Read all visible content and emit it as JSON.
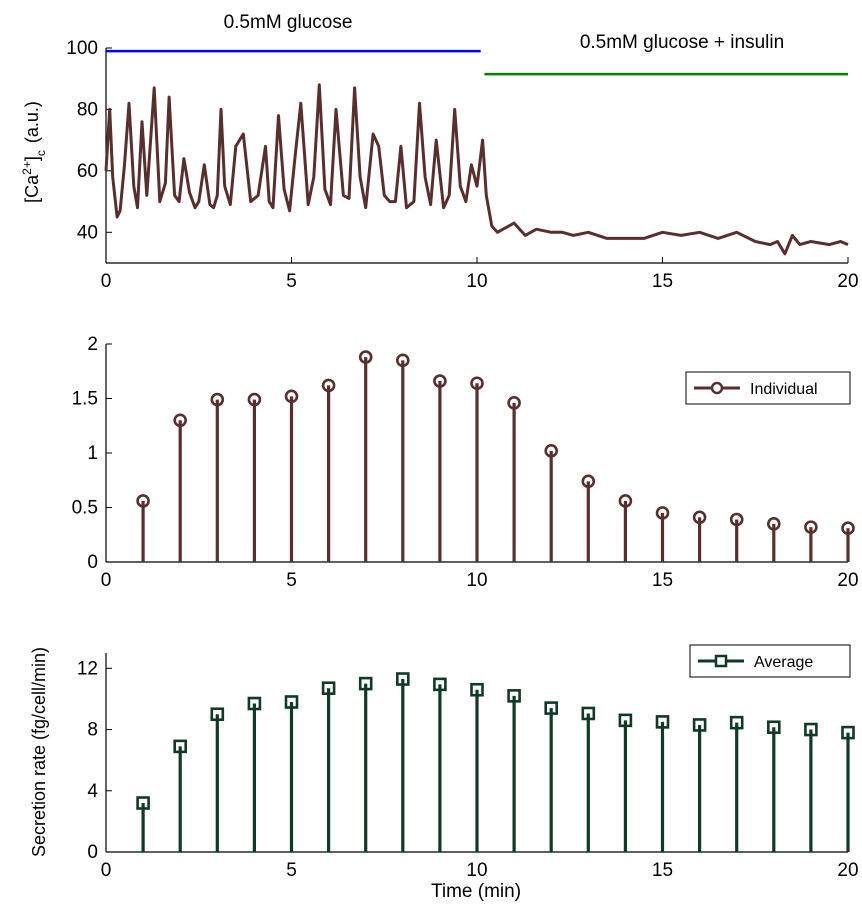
{
  "chart_data": [
    {
      "type": "line",
      "ylabel_base": "[Ca",
      "ylabel_sup": "2+",
      "ylabel_close": "]",
      "ylabel_sub": "c",
      "ylabel_unit": "(a.u.)",
      "xlim": [
        0,
        20
      ],
      "ylim": [
        30,
        100
      ],
      "xticks": [
        "0",
        "5",
        "10",
        "15",
        "20"
      ],
      "yticks": [
        "40",
        "60",
        "80",
        "100"
      ],
      "annotations": [
        {
          "text": "0.5mM glucose",
          "x_start": 0,
          "x_end": 10.1,
          "y": 99,
          "color": "#0000ff"
        },
        {
          "text": "0.5mM glucose + insulin",
          "x_start": 10.2,
          "x_end": 20,
          "y": 91.5,
          "color": "#008000"
        }
      ],
      "series": [
        {
          "color": "#5b2e2e",
          "x": [
            0,
            0.1,
            0.18,
            0.3,
            0.38,
            0.5,
            0.62,
            0.75,
            0.85,
            0.97,
            1.1,
            1.3,
            1.45,
            1.6,
            1.7,
            1.85,
            1.97,
            2.1,
            2.25,
            2.4,
            2.5,
            2.65,
            2.8,
            2.9,
            3.0,
            3.1,
            3.2,
            3.35,
            3.5,
            3.7,
            3.9,
            4.1,
            4.3,
            4.4,
            4.5,
            4.65,
            4.8,
            4.95,
            5.1,
            5.25,
            5.45,
            5.6,
            5.75,
            5.9,
            6.05,
            6.2,
            6.4,
            6.55,
            6.7,
            6.85,
            7.0,
            7.2,
            7.35,
            7.5,
            7.65,
            7.8,
            7.95,
            8.1,
            8.3,
            8.45,
            8.6,
            8.75,
            8.9,
            9.1,
            9.25,
            9.4,
            9.55,
            9.7,
            9.85,
            10.0,
            10.15,
            10.25,
            10.4,
            10.55,
            10.7,
            11.0,
            11.3,
            11.6,
            12.0,
            12.3,
            12.6,
            13.0,
            13.5,
            14.0,
            14.5,
            15.0,
            15.5,
            16.0,
            16.5,
            17.0,
            17.5,
            17.9,
            18.1,
            18.3,
            18.5,
            18.7,
            19.0,
            19.5,
            19.8,
            20.0
          ],
          "values": [
            60,
            80,
            58,
            45,
            47,
            62,
            82,
            55,
            48,
            76,
            52,
            87,
            50,
            56,
            84,
            52,
            50,
            64,
            53,
            48,
            50,
            62,
            49,
            48,
            52,
            80,
            55,
            49,
            68,
            72,
            50,
            52,
            68,
            50,
            48,
            78,
            54,
            47,
            65,
            82,
            49,
            58,
            88,
            54,
            49,
            80,
            52,
            51,
            87,
            58,
            48,
            72,
            68,
            52,
            50,
            50,
            68,
            48,
            50,
            82,
            58,
            49,
            70,
            48,
            52,
            80,
            55,
            50,
            62,
            55,
            70,
            52,
            42,
            40,
            41,
            43,
            39,
            41,
            40,
            40,
            39,
            40,
            38,
            38,
            38,
            40,
            39,
            40,
            38,
            40,
            37,
            36,
            37,
            33,
            39,
            36,
            37,
            36,
            37,
            36
          ]
        }
      ]
    },
    {
      "type": "stem",
      "xlim": [
        0,
        20
      ],
      "ylim": [
        0,
        2
      ],
      "xticks": [
        "0",
        "5",
        "10",
        "15",
        "20"
      ],
      "yticks": [
        "0",
        "0.5",
        "1",
        "1.5",
        "2"
      ],
      "legend_position": "right",
      "series": [
        {
          "name": "Individual",
          "color": "#5b2e2e",
          "marker": "circle",
          "x": [
            1,
            2,
            3,
            4,
            5,
            6,
            7,
            8,
            9,
            10,
            11,
            12,
            13,
            14,
            15,
            16,
            17,
            18,
            19,
            20
          ],
          "values": [
            0.56,
            1.3,
            1.49,
            1.49,
            1.52,
            1.62,
            1.88,
            1.85,
            1.66,
            1.64,
            1.46,
            1.02,
            0.74,
            0.56,
            0.45,
            0.41,
            0.39,
            0.35,
            0.32,
            0.31
          ]
        }
      ]
    },
    {
      "type": "stem",
      "xlabel": "Time (min)",
      "ylabel": "Secretion rate (fg/cell/min)",
      "xlim": [
        0,
        20
      ],
      "ylim": [
        0,
        13
      ],
      "xticks": [
        "0",
        "5",
        "10",
        "15",
        "20"
      ],
      "yticks": [
        "0",
        "4",
        "8",
        "12"
      ],
      "legend_position": "top-right",
      "series": [
        {
          "name": "Average",
          "color": "#0f3a26",
          "marker": "square",
          "x": [
            1,
            2,
            3,
            4,
            5,
            6,
            7,
            8,
            9,
            10,
            11,
            12,
            13,
            14,
            15,
            16,
            17,
            18,
            19,
            20
          ],
          "values": [
            3.2,
            6.9,
            9.0,
            9.7,
            9.8,
            10.7,
            11.0,
            11.3,
            10.95,
            10.6,
            10.2,
            9.4,
            9.05,
            8.6,
            8.5,
            8.3,
            8.45,
            8.15,
            8.0,
            7.8
          ]
        }
      ]
    }
  ]
}
